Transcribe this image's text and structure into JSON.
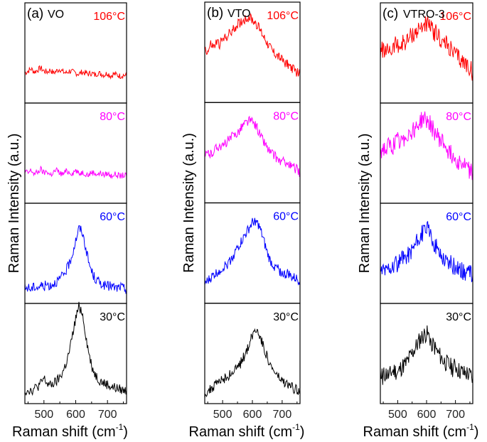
{
  "chart_data": [
    {
      "type": "line",
      "panel_label": "(a)",
      "title": "VO",
      "xlabel": "Raman shift (cm",
      "xlabel_sup": "-1",
      "xlabel_end": ")",
      "ylabel": "Raman Intensity (a.u.)",
      "xlim": [
        440,
        760
      ],
      "xticks": [
        500,
        600,
        700
      ],
      "x": [
        440,
        450,
        460,
        470,
        480,
        490,
        500,
        510,
        520,
        530,
        540,
        550,
        560,
        570,
        580,
        590,
        600,
        610,
        620,
        630,
        640,
        650,
        660,
        670,
        680,
        690,
        700,
        710,
        720,
        730,
        740,
        750,
        760
      ],
      "series": [
        {
          "name": "106°C",
          "color": "#ff0000",
          "values": [
            0.3,
            0.32,
            0.34,
            0.31,
            0.33,
            0.35,
            0.32,
            0.31,
            0.33,
            0.3,
            0.32,
            0.34,
            0.31,
            0.3,
            0.32,
            0.31,
            0.3,
            0.29,
            0.31,
            0.3,
            0.29,
            0.3,
            0.28,
            0.3,
            0.29,
            0.28,
            0.3,
            0.27,
            0.29,
            0.28,
            0.27,
            0.28,
            0.27
          ]
        },
        {
          "name": "80°C",
          "color": "#ff00ff",
          "values": [
            0.32,
            0.3,
            0.33,
            0.29,
            0.31,
            0.34,
            0.3,
            0.32,
            0.28,
            0.31,
            0.33,
            0.3,
            0.29,
            0.32,
            0.31,
            0.3,
            0.33,
            0.29,
            0.31,
            0.3,
            0.28,
            0.31,
            0.3,
            0.29,
            0.3,
            0.28,
            0.3,
            0.27,
            0.29,
            0.28,
            0.27,
            0.28,
            0.27
          ]
        },
        {
          "name": "60°C",
          "color": "#0000ff",
          "values": [
            0.15,
            0.16,
            0.14,
            0.17,
            0.16,
            0.18,
            0.17,
            0.19,
            0.18,
            0.2,
            0.22,
            0.24,
            0.28,
            0.33,
            0.4,
            0.5,
            0.63,
            0.75,
            0.72,
            0.58,
            0.42,
            0.32,
            0.25,
            0.22,
            0.2,
            0.18,
            0.17,
            0.18,
            0.16,
            0.15,
            0.17,
            0.15,
            0.14
          ]
        },
        {
          "name": "30°C",
          "color": "#000000",
          "values": [
            0.12,
            0.14,
            0.13,
            0.15,
            0.17,
            0.2,
            0.25,
            0.2,
            0.18,
            0.2,
            0.22,
            0.26,
            0.32,
            0.4,
            0.52,
            0.68,
            0.85,
            0.97,
            0.92,
            0.72,
            0.52,
            0.38,
            0.3,
            0.25,
            0.22,
            0.2,
            0.19,
            0.17,
            0.16,
            0.15,
            0.14,
            0.13,
            0.13
          ]
        }
      ]
    },
    {
      "type": "line",
      "panel_label": "(b)",
      "title": "VTO",
      "xlabel": "Raman shift (cm",
      "xlabel_sup": "-1",
      "xlabel_end": ")",
      "ylabel": "Raman Intensity (a.u.)",
      "xlim": [
        440,
        760
      ],
      "xticks": [
        500,
        600,
        700
      ],
      "x": [
        440,
        450,
        460,
        470,
        480,
        490,
        500,
        510,
        520,
        530,
        540,
        550,
        560,
        570,
        580,
        590,
        600,
        610,
        620,
        630,
        640,
        650,
        660,
        670,
        680,
        690,
        700,
        710,
        720,
        730,
        740,
        750,
        760
      ],
      "series": [
        {
          "name": "106°C",
          "color": "#ff0000",
          "values": [
            0.55,
            0.5,
            0.58,
            0.55,
            0.6,
            0.58,
            0.62,
            0.65,
            0.68,
            0.7,
            0.74,
            0.78,
            0.8,
            0.82,
            0.84,
            0.85,
            0.82,
            0.8,
            0.75,
            0.7,
            0.65,
            0.6,
            0.55,
            0.5,
            0.48,
            0.45,
            0.42,
            0.4,
            0.38,
            0.35,
            0.32,
            0.3,
            0.28
          ]
        },
        {
          "name": "80°C",
          "color": "#ff00ff",
          "values": [
            0.45,
            0.5,
            0.48,
            0.52,
            0.55,
            0.58,
            0.55,
            0.6,
            0.62,
            0.65,
            0.68,
            0.7,
            0.74,
            0.78,
            0.8,
            0.82,
            0.8,
            0.78,
            0.72,
            0.65,
            0.6,
            0.55,
            0.5,
            0.48,
            0.45,
            0.42,
            0.4,
            0.42,
            0.38,
            0.36,
            0.35,
            0.33,
            0.3
          ]
        },
        {
          "name": "60°C",
          "color": "#0000ff",
          "values": [
            0.2,
            0.22,
            0.25,
            0.28,
            0.3,
            0.33,
            0.35,
            0.38,
            0.4,
            0.45,
            0.5,
            0.55,
            0.6,
            0.65,
            0.7,
            0.75,
            0.8,
            0.82,
            0.78,
            0.7,
            0.6,
            0.5,
            0.42,
            0.38,
            0.35,
            0.33,
            0.3,
            0.28,
            0.3,
            0.26,
            0.25,
            0.24,
            0.22
          ]
        },
        {
          "name": "30°C",
          "color": "#000000",
          "values": [
            0.1,
            0.12,
            0.14,
            0.17,
            0.2,
            0.22,
            0.24,
            0.26,
            0.28,
            0.3,
            0.33,
            0.36,
            0.4,
            0.46,
            0.52,
            0.6,
            0.68,
            0.74,
            0.72,
            0.64,
            0.55,
            0.46,
            0.38,
            0.33,
            0.29,
            0.25,
            0.22,
            0.2,
            0.18,
            0.17,
            0.15,
            0.14,
            0.13
          ]
        }
      ]
    },
    {
      "type": "line",
      "panel_label": "(c)",
      "title": "VTRO-3",
      "xlabel": "Raman shift (cm",
      "xlabel_sup": "-1",
      "xlabel_end": ")",
      "ylabel": "Raman Intensity (a.u.)",
      "xlim": [
        440,
        760
      ],
      "xticks": [
        500,
        600,
        700
      ],
      "x": [
        440,
        450,
        460,
        470,
        480,
        490,
        500,
        510,
        520,
        530,
        540,
        550,
        560,
        570,
        580,
        590,
        600,
        610,
        620,
        630,
        640,
        650,
        660,
        670,
        680,
        690,
        700,
        710,
        720,
        730,
        740,
        750,
        760
      ],
      "series": [
        {
          "name": "106°C",
          "color": "#ff0000",
          "values": [
            0.5,
            0.55,
            0.48,
            0.55,
            0.52,
            0.58,
            0.6,
            0.55,
            0.62,
            0.6,
            0.65,
            0.68,
            0.7,
            0.72,
            0.75,
            0.78,
            0.8,
            0.76,
            0.72,
            0.7,
            0.68,
            0.62,
            0.6,
            0.58,
            0.55,
            0.5,
            0.48,
            0.45,
            0.42,
            0.4,
            0.38,
            0.35,
            0.3
          ]
        },
        {
          "name": "80°C",
          "color": "#ff00ff",
          "values": [
            0.5,
            0.55,
            0.52,
            0.58,
            0.55,
            0.6,
            0.62,
            0.58,
            0.65,
            0.68,
            0.7,
            0.72,
            0.75,
            0.78,
            0.82,
            0.85,
            0.82,
            0.8,
            0.75,
            0.7,
            0.66,
            0.62,
            0.6,
            0.55,
            0.5,
            0.48,
            0.45,
            0.42,
            0.4,
            0.38,
            0.35,
            0.33,
            0.3
          ]
        },
        {
          "name": "60°C",
          "color": "#0000ff",
          "values": [
            0.3,
            0.35,
            0.32,
            0.38,
            0.35,
            0.4,
            0.38,
            0.42,
            0.45,
            0.48,
            0.5,
            0.55,
            0.58,
            0.62,
            0.68,
            0.72,
            0.75,
            0.7,
            0.65,
            0.58,
            0.52,
            0.48,
            0.45,
            0.42,
            0.4,
            0.38,
            0.35,
            0.36,
            0.33,
            0.32,
            0.3,
            0.3,
            0.28
          ]
        },
        {
          "name": "30°C",
          "color": "#000000",
          "values": [
            0.25,
            0.28,
            0.3,
            0.27,
            0.32,
            0.33,
            0.3,
            0.35,
            0.38,
            0.4,
            0.45,
            0.5,
            0.55,
            0.6,
            0.65,
            0.68,
            0.7,
            0.66,
            0.6,
            0.55,
            0.5,
            0.46,
            0.42,
            0.4,
            0.38,
            0.35,
            0.38,
            0.33,
            0.32,
            0.3,
            0.3,
            0.28,
            0.25
          ]
        }
      ]
    }
  ]
}
